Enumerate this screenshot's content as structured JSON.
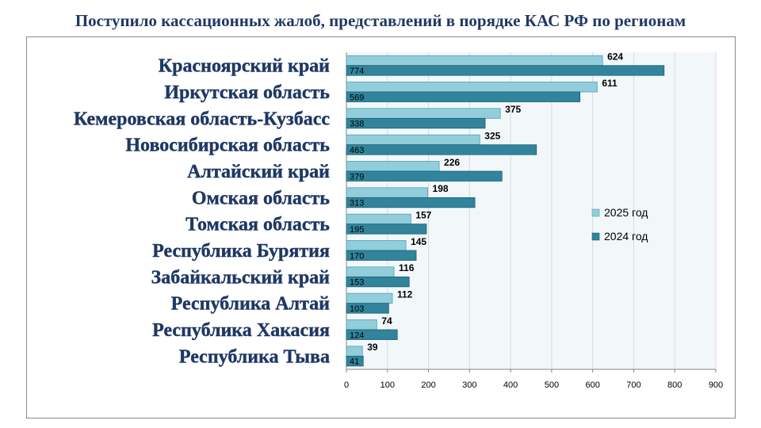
{
  "title": "Поступило кассационных жалоб, представлений в порядке КАС РФ по регионам",
  "colors": {
    "series_2025": "#92cddc",
    "series_2024": "#31849b",
    "title": "#1f3864",
    "plot_bg": "#f2f8fa"
  },
  "chart_data": {
    "type": "bar",
    "orientation": "horizontal",
    "categories": [
      "Красноярский край",
      "Иркутская область",
      "Кемеровская область-Кузбасс",
      "Новосибирская область",
      "Алтайский край",
      "Омская область",
      "Томская область",
      "Республика Бурятия",
      "Забайкальский край",
      "Республика Алтай",
      "Республика Хакасия",
      "Республика Тыва"
    ],
    "series": [
      {
        "name": "2025 год",
        "values": [
          624,
          611,
          375,
          325,
          226,
          198,
          157,
          145,
          116,
          112,
          74,
          39
        ]
      },
      {
        "name": "2024 год",
        "values": [
          774,
          569,
          338,
          463,
          379,
          313,
          195,
          170,
          153,
          103,
          124,
          41
        ]
      }
    ],
    "xlim": [
      0,
      900
    ],
    "xticks": [
      0,
      100,
      200,
      300,
      400,
      500,
      600,
      700,
      800,
      900
    ],
    "grid": true,
    "legend_position": "right"
  }
}
